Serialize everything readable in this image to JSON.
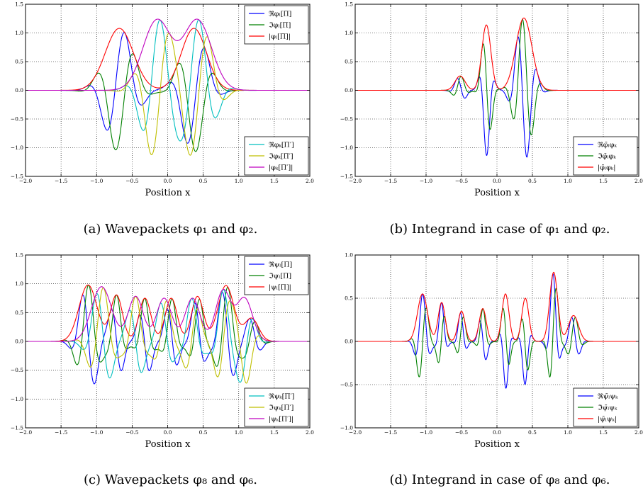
{
  "chart_data": [
    {
      "type": "line",
      "id": "a",
      "caption": "(a) Wavepackets φ₁ and φ₂.",
      "xlabel": "Position x",
      "xlim": [
        -2.0,
        2.0
      ],
      "ylim": [
        -1.5,
        1.5
      ],
      "xticks": [
        "−2.0",
        "−1.5",
        "−1.0",
        "−0.5",
        "0.0",
        "0.5",
        "1.0",
        "1.5",
        "2.0"
      ],
      "yticks": [
        "−1.5",
        "−1.0",
        "−0.5",
        "0.0",
        "0.5",
        "1.0",
        "1.5"
      ],
      "grid": true,
      "legends": [
        {
          "placement": "top-right",
          "entries": [
            {
              "label": "ℜφₗ[Π]",
              "color": "#0000ff"
            },
            {
              "label": "ℑφₗ[Π]",
              "color": "#008000"
            },
            {
              "label": "|φₗ[Π]|",
              "color": "#ff0000"
            }
          ]
        },
        {
          "placement": "bottom-right",
          "entries": [
            {
              "label": "ℜφₖ[Π′]",
              "color": "#00bfbf"
            },
            {
              "label": "ℑφₖ[Π′]",
              "color": "#bfbf00"
            },
            {
              "label": "|φₖ[Π′]|",
              "color": "#bf00bf"
            }
          ]
        }
      ],
      "series": [
        {
          "color": "#0000ff",
          "kind": "re",
          "env": {
            "modes": [
              {
                "a": 1.08,
                "c": -0.68,
                "s": 0.28
              },
              {
                "a": 1.08,
                "c": 0.37,
                "s": 0.25
              }
            ]
          },
          "k": 11.0,
          "phase": 0.3
        },
        {
          "color": "#008000",
          "kind": "im",
          "env": {
            "modes": [
              {
                "a": 1.08,
                "c": -0.68,
                "s": 0.28
              },
              {
                "a": 1.08,
                "c": 0.37,
                "s": 0.25
              }
            ]
          },
          "k": 11.0,
          "phase": 0.3
        },
        {
          "color": "#ff0000",
          "kind": "abs",
          "env": {
            "modes": [
              {
                "a": 1.08,
                "c": -0.68,
                "s": 0.28
              },
              {
                "a": 1.08,
                "c": 0.37,
                "s": 0.25
              }
            ]
          }
        },
        {
          "color": "#00bfbf",
          "kind": "re",
          "env": {
            "modes": [
              {
                "a": 1.22,
                "c": -0.15,
                "s": 0.28
              },
              {
                "a": 1.22,
                "c": 0.42,
                "s": 0.28
              }
            ]
          },
          "k": 11.5,
          "phase": 1.2
        },
        {
          "color": "#bfbf00",
          "kind": "im",
          "env": {
            "modes": [
              {
                "a": 1.22,
                "c": -0.15,
                "s": 0.28
              },
              {
                "a": 1.22,
                "c": 0.42,
                "s": 0.28
              }
            ]
          },
          "k": 11.5,
          "phase": 1.2
        },
        {
          "color": "#bf00bf",
          "kind": "abs",
          "env": {
            "modes": [
              {
                "a": 1.22,
                "c": -0.15,
                "s": 0.28
              },
              {
                "a": 1.22,
                "c": 0.42,
                "s": 0.28
              }
            ]
          }
        }
      ]
    },
    {
      "type": "line",
      "id": "b",
      "caption": "(b) Integrand in case of φ₁ and φ₂.",
      "xlabel": "Position x",
      "xlim": [
        -2.0,
        2.0
      ],
      "ylim": [
        -1.5,
        1.5
      ],
      "xticks": [
        "−2.0",
        "−1.5",
        "−1.0",
        "−0.5",
        "0.0",
        "0.5",
        "1.0",
        "1.5",
        "2.0"
      ],
      "yticks": [
        "−1.5",
        "−1.0",
        "−0.5",
        "0.0",
        "0.5",
        "1.0",
        "1.5"
      ],
      "grid": true,
      "legends": [
        {
          "placement": "bottom-right",
          "entries": [
            {
              "label": "ℜφ̄ₗφₖ",
              "color": "#0000ff"
            },
            {
              "label": "ℑφ̄ₗφₖ",
              "color": "#008000"
            },
            {
              "label": "|φ̄ₗφₖ|",
              "color": "#ff0000"
            }
          ]
        }
      ],
      "series": [
        {
          "color": "#0000ff",
          "kind": "re",
          "env": {
            "modes": [
              {
                "a": 0.25,
                "c": -0.52,
                "s": 0.1
              },
              {
                "a": 1.14,
                "c": -0.15,
                "s": 0.09
              },
              {
                "a": 1.26,
                "c": 0.38,
                "s": 0.16
              }
            ]
          },
          "k": 22.0,
          "phase": 0.0
        },
        {
          "color": "#008000",
          "kind": "im",
          "env": {
            "modes": [
              {
                "a": 0.25,
                "c": -0.52,
                "s": 0.1
              },
              {
                "a": 1.14,
                "c": -0.15,
                "s": 0.09
              },
              {
                "a": 1.26,
                "c": 0.38,
                "s": 0.16
              }
            ]
          },
          "k": 22.0,
          "phase": 0.0
        },
        {
          "color": "#ff0000",
          "kind": "abs",
          "env": {
            "modes": [
              {
                "a": 0.25,
                "c": -0.52,
                "s": 0.1
              },
              {
                "a": 1.14,
                "c": -0.15,
                "s": 0.09
              },
              {
                "a": 1.26,
                "c": 0.38,
                "s": 0.16
              }
            ]
          }
        }
      ]
    },
    {
      "type": "line",
      "id": "c",
      "caption": "(c) Wavepackets φ₈ and φ₆.",
      "xlabel": "Position x",
      "xlim": [
        -2.0,
        2.0
      ],
      "ylim": [
        -1.5,
        1.5
      ],
      "xticks": [
        "−2.0",
        "−1.5",
        "−1.0",
        "−0.5",
        "0.0",
        "0.5",
        "1.0",
        "1.5",
        "2.0"
      ],
      "yticks": [
        "−1.5",
        "−1.0",
        "−0.5",
        "0.0",
        "0.5",
        "1.0",
        "1.5"
      ],
      "grid": true,
      "legends": [
        {
          "placement": "top-right",
          "entries": [
            {
              "label": "ℜψₗ[Π]",
              "color": "#0000ff"
            },
            {
              "label": "ℑψₗ[Π]",
              "color": "#008000"
            },
            {
              "label": "|ψₗ[Π]|",
              "color": "#ff0000"
            }
          ]
        },
        {
          "placement": "bottom-right",
          "entries": [
            {
              "label": "ℜψₖ[Π′]",
              "color": "#00bfbf"
            },
            {
              "label": "ℑψₖ[Π′]",
              "color": "#bfbf00"
            },
            {
              "label": "|ψₖ[Π′]|",
              "color": "#bf00bf"
            }
          ]
        }
      ],
      "series": [
        {
          "color": "#0000ff",
          "kind": "re",
          "env": {
            "modes": [
              {
                "a": 0.98,
                "c": -1.12,
                "s": 0.18
              },
              {
                "a": 0.8,
                "c": -0.72,
                "s": 0.12
              },
              {
                "a": 0.75,
                "c": -0.32,
                "s": 0.12
              },
              {
                "a": 0.75,
                "c": 0.05,
                "s": 0.12
              },
              {
                "a": 0.78,
                "c": 0.42,
                "s": 0.12
              },
              {
                "a": 0.97,
                "c": 0.82,
                "s": 0.16
              },
              {
                "a": 0.4,
                "c": 1.18,
                "s": 0.14
              }
            ]
          },
          "k": 16.0,
          "phase": 0.5
        },
        {
          "color": "#008000",
          "kind": "im",
          "env": {
            "modes": [
              {
                "a": 0.98,
                "c": -1.12,
                "s": 0.18
              },
              {
                "a": 0.8,
                "c": -0.72,
                "s": 0.12
              },
              {
                "a": 0.75,
                "c": -0.32,
                "s": 0.12
              },
              {
                "a": 0.75,
                "c": 0.05,
                "s": 0.12
              },
              {
                "a": 0.78,
                "c": 0.42,
                "s": 0.12
              },
              {
                "a": 0.97,
                "c": 0.82,
                "s": 0.16
              },
              {
                "a": 0.4,
                "c": 1.18,
                "s": 0.14
              }
            ]
          },
          "k": 16.0,
          "phase": 0.5
        },
        {
          "color": "#ff0000",
          "kind": "abs",
          "env": {
            "modes": [
              {
                "a": 0.98,
                "c": -1.12,
                "s": 0.18
              },
              {
                "a": 0.8,
                "c": -0.72,
                "s": 0.12
              },
              {
                "a": 0.75,
                "c": -0.32,
                "s": 0.12
              },
              {
                "a": 0.75,
                "c": 0.05,
                "s": 0.12
              },
              {
                "a": 0.78,
                "c": 0.42,
                "s": 0.12
              },
              {
                "a": 0.97,
                "c": 0.82,
                "s": 0.16
              },
              {
                "a": 0.4,
                "c": 1.18,
                "s": 0.14
              }
            ]
          }
        },
        {
          "color": "#00bfbf",
          "kind": "re",
          "env": {
            "modes": [
              {
                "a": 0.95,
                "c": -0.93,
                "s": 0.2
              },
              {
                "a": 0.78,
                "c": -0.45,
                "s": 0.15
              },
              {
                "a": 0.75,
                "c": -0.05,
                "s": 0.15
              },
              {
                "a": 0.75,
                "c": 0.35,
                "s": 0.15
              },
              {
                "a": 0.88,
                "c": 0.78,
                "s": 0.15
              },
              {
                "a": 0.75,
                "c": 1.08,
                "s": 0.16
              }
            ]
          },
          "k": 14.0,
          "phase": 1.6
        },
        {
          "color": "#bfbf00",
          "kind": "im",
          "env": {
            "modes": [
              {
                "a": 0.95,
                "c": -0.93,
                "s": 0.2
              },
              {
                "a": 0.78,
                "c": -0.45,
                "s": 0.15
              },
              {
                "a": 0.75,
                "c": -0.05,
                "s": 0.15
              },
              {
                "a": 0.75,
                "c": 0.35,
                "s": 0.15
              },
              {
                "a": 0.88,
                "c": 0.78,
                "s": 0.15
              },
              {
                "a": 0.75,
                "c": 1.08,
                "s": 0.16
              }
            ]
          },
          "k": 14.0,
          "phase": 1.6
        },
        {
          "color": "#bf00bf",
          "kind": "abs",
          "env": {
            "modes": [
              {
                "a": 0.95,
                "c": -0.93,
                "s": 0.2
              },
              {
                "a": 0.78,
                "c": -0.45,
                "s": 0.15
              },
              {
                "a": 0.75,
                "c": -0.05,
                "s": 0.15
              },
              {
                "a": 0.75,
                "c": 0.35,
                "s": 0.15
              },
              {
                "a": 0.88,
                "c": 0.78,
                "s": 0.15
              },
              {
                "a": 0.75,
                "c": 1.08,
                "s": 0.16
              }
            ]
          }
        }
      ]
    },
    {
      "type": "line",
      "id": "d",
      "caption": "(d) Integrand in case of φ₈ and φ₆.",
      "xlabel": "Position x",
      "xlim": [
        -2.0,
        2.0
      ],
      "ylim": [
        -1.0,
        1.0
      ],
      "xticks": [
        "−2.0",
        "−1.5",
        "−1.0",
        "−0.5",
        "0.0",
        "0.5",
        "1.0",
        "1.5",
        "2.0"
      ],
      "yticks": [
        "−1.0",
        "−0.5",
        "0.0",
        "0.5",
        "1.0"
      ],
      "grid": true,
      "legends": [
        {
          "placement": "bottom-right",
          "entries": [
            {
              "label": "ℜψ̄ₗψₖ",
              "color": "#0000ff"
            },
            {
              "label": "ℑψ̄ₗψₖ",
              "color": "#008000"
            },
            {
              "label": "|ψ̄ₗψₖ|",
              "color": "#ff0000"
            }
          ]
        }
      ],
      "series": [
        {
          "color": "#0000ff",
          "kind": "re",
          "env": {
            "modes": [
              {
                "a": 0.55,
                "c": -1.05,
                "s": 0.1
              },
              {
                "a": 0.45,
                "c": -0.78,
                "s": 0.07
              },
              {
                "a": 0.35,
                "c": -0.5,
                "s": 0.07
              },
              {
                "a": 0.38,
                "c": -0.2,
                "s": 0.07
              },
              {
                "a": 0.55,
                "c": 0.12,
                "s": 0.07
              },
              {
                "a": 0.5,
                "c": 0.4,
                "s": 0.07
              },
              {
                "a": 0.8,
                "c": 0.8,
                "s": 0.08
              },
              {
                "a": 0.3,
                "c": 1.08,
                "s": 0.1
              }
            ]
          },
          "k": 24.0,
          "phase": 0.0
        },
        {
          "color": "#008000",
          "kind": "im",
          "env": {
            "modes": [
              {
                "a": 0.55,
                "c": -1.05,
                "s": 0.1
              },
              {
                "a": 0.45,
                "c": -0.78,
                "s": 0.07
              },
              {
                "a": 0.35,
                "c": -0.5,
                "s": 0.07
              },
              {
                "a": 0.38,
                "c": -0.2,
                "s": 0.07
              },
              {
                "a": 0.55,
                "c": 0.12,
                "s": 0.07
              },
              {
                "a": 0.5,
                "c": 0.4,
                "s": 0.07
              },
              {
                "a": 0.8,
                "c": 0.8,
                "s": 0.08
              },
              {
                "a": 0.3,
                "c": 1.08,
                "s": 0.1
              }
            ]
          },
          "k": 24.0,
          "phase": 0.0
        },
        {
          "color": "#ff0000",
          "kind": "abs",
          "env": {
            "modes": [
              {
                "a": 0.55,
                "c": -1.05,
                "s": 0.1
              },
              {
                "a": 0.45,
                "c": -0.78,
                "s": 0.07
              },
              {
                "a": 0.35,
                "c": -0.5,
                "s": 0.07
              },
              {
                "a": 0.38,
                "c": -0.2,
                "s": 0.07
              },
              {
                "a": 0.55,
                "c": 0.12,
                "s": 0.07
              },
              {
                "a": 0.5,
                "c": 0.4,
                "s": 0.07
              },
              {
                "a": 0.8,
                "c": 0.8,
                "s": 0.08
              },
              {
                "a": 0.3,
                "c": 1.08,
                "s": 0.1
              }
            ]
          }
        }
      ]
    }
  ]
}
